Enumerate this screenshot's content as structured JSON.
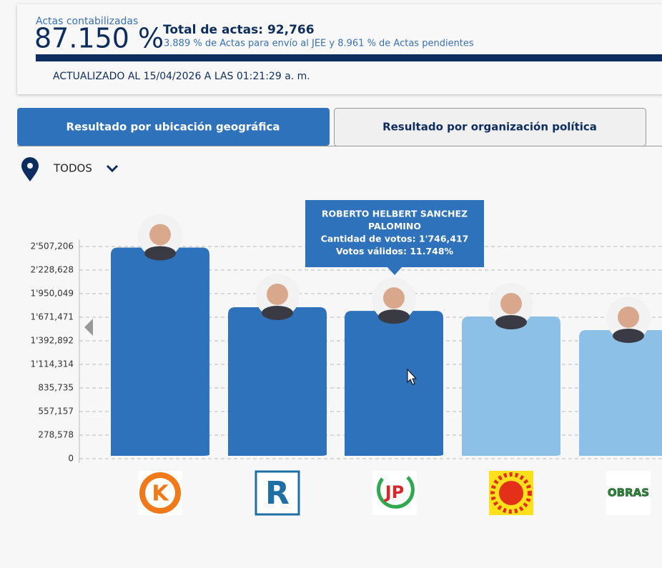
{
  "header": {
    "actas_label": "Actas contabilizadas",
    "actas_percent": "87.150 %",
    "total": "Total de actas: 92,766",
    "detail": "3.889 % de Actas para envío al JEE y 8.961 % de Actas pendientes",
    "updated": "ACTUALIZADO AL 15/04/2026 A LAS 01:21:29 a. m."
  },
  "tabs": [
    "Resultado por ubicación geográfica",
    "Resultado por organización política"
  ],
  "filter": "TODOS",
  "tooltip": [
    "ROBERTO HELBERT SANCHEZ",
    "PALOMINO",
    "Cantidad de votos: 1'746,417",
    "Votos válidos: 11.748%"
  ],
  "logos": [
    "K",
    "R",
    "JP",
    "OBRAS"
  ],
  "chart_data": {
    "type": "bar",
    "categories": [
      null,
      null,
      null,
      null,
      null
    ],
    "values": [
      2495000,
      1790000,
      1746417,
      1680000,
      1520000
    ],
    "colors": [
      "#2f72bc",
      "#2f72bc",
      "#2f72bc",
      "#8cc0e6",
      "#8cc0e6"
    ],
    "ylim": [
      0,
      2600000
    ],
    "yticks": [
      0,
      {
        "value": 278578,
        "label": "278,578"
      },
      {
        "value": 557157,
        "label": "557,157"
      },
      {
        "value": 835735,
        "label": "835,735"
      },
      {
        "value": 1114314,
        "label": "1'114,314"
      },
      {
        "value": 1392892,
        "label": "1'392,892"
      },
      {
        "value": 1671471,
        "label": "1'671,471"
      },
      {
        "value": 1950049,
        "label": "1'950,049"
      },
      {
        "value": 2228628,
        "label": "2'228,628"
      },
      {
        "value": 2507206,
        "label": "2'507,206"
      }
    ],
    "grid": true
  }
}
